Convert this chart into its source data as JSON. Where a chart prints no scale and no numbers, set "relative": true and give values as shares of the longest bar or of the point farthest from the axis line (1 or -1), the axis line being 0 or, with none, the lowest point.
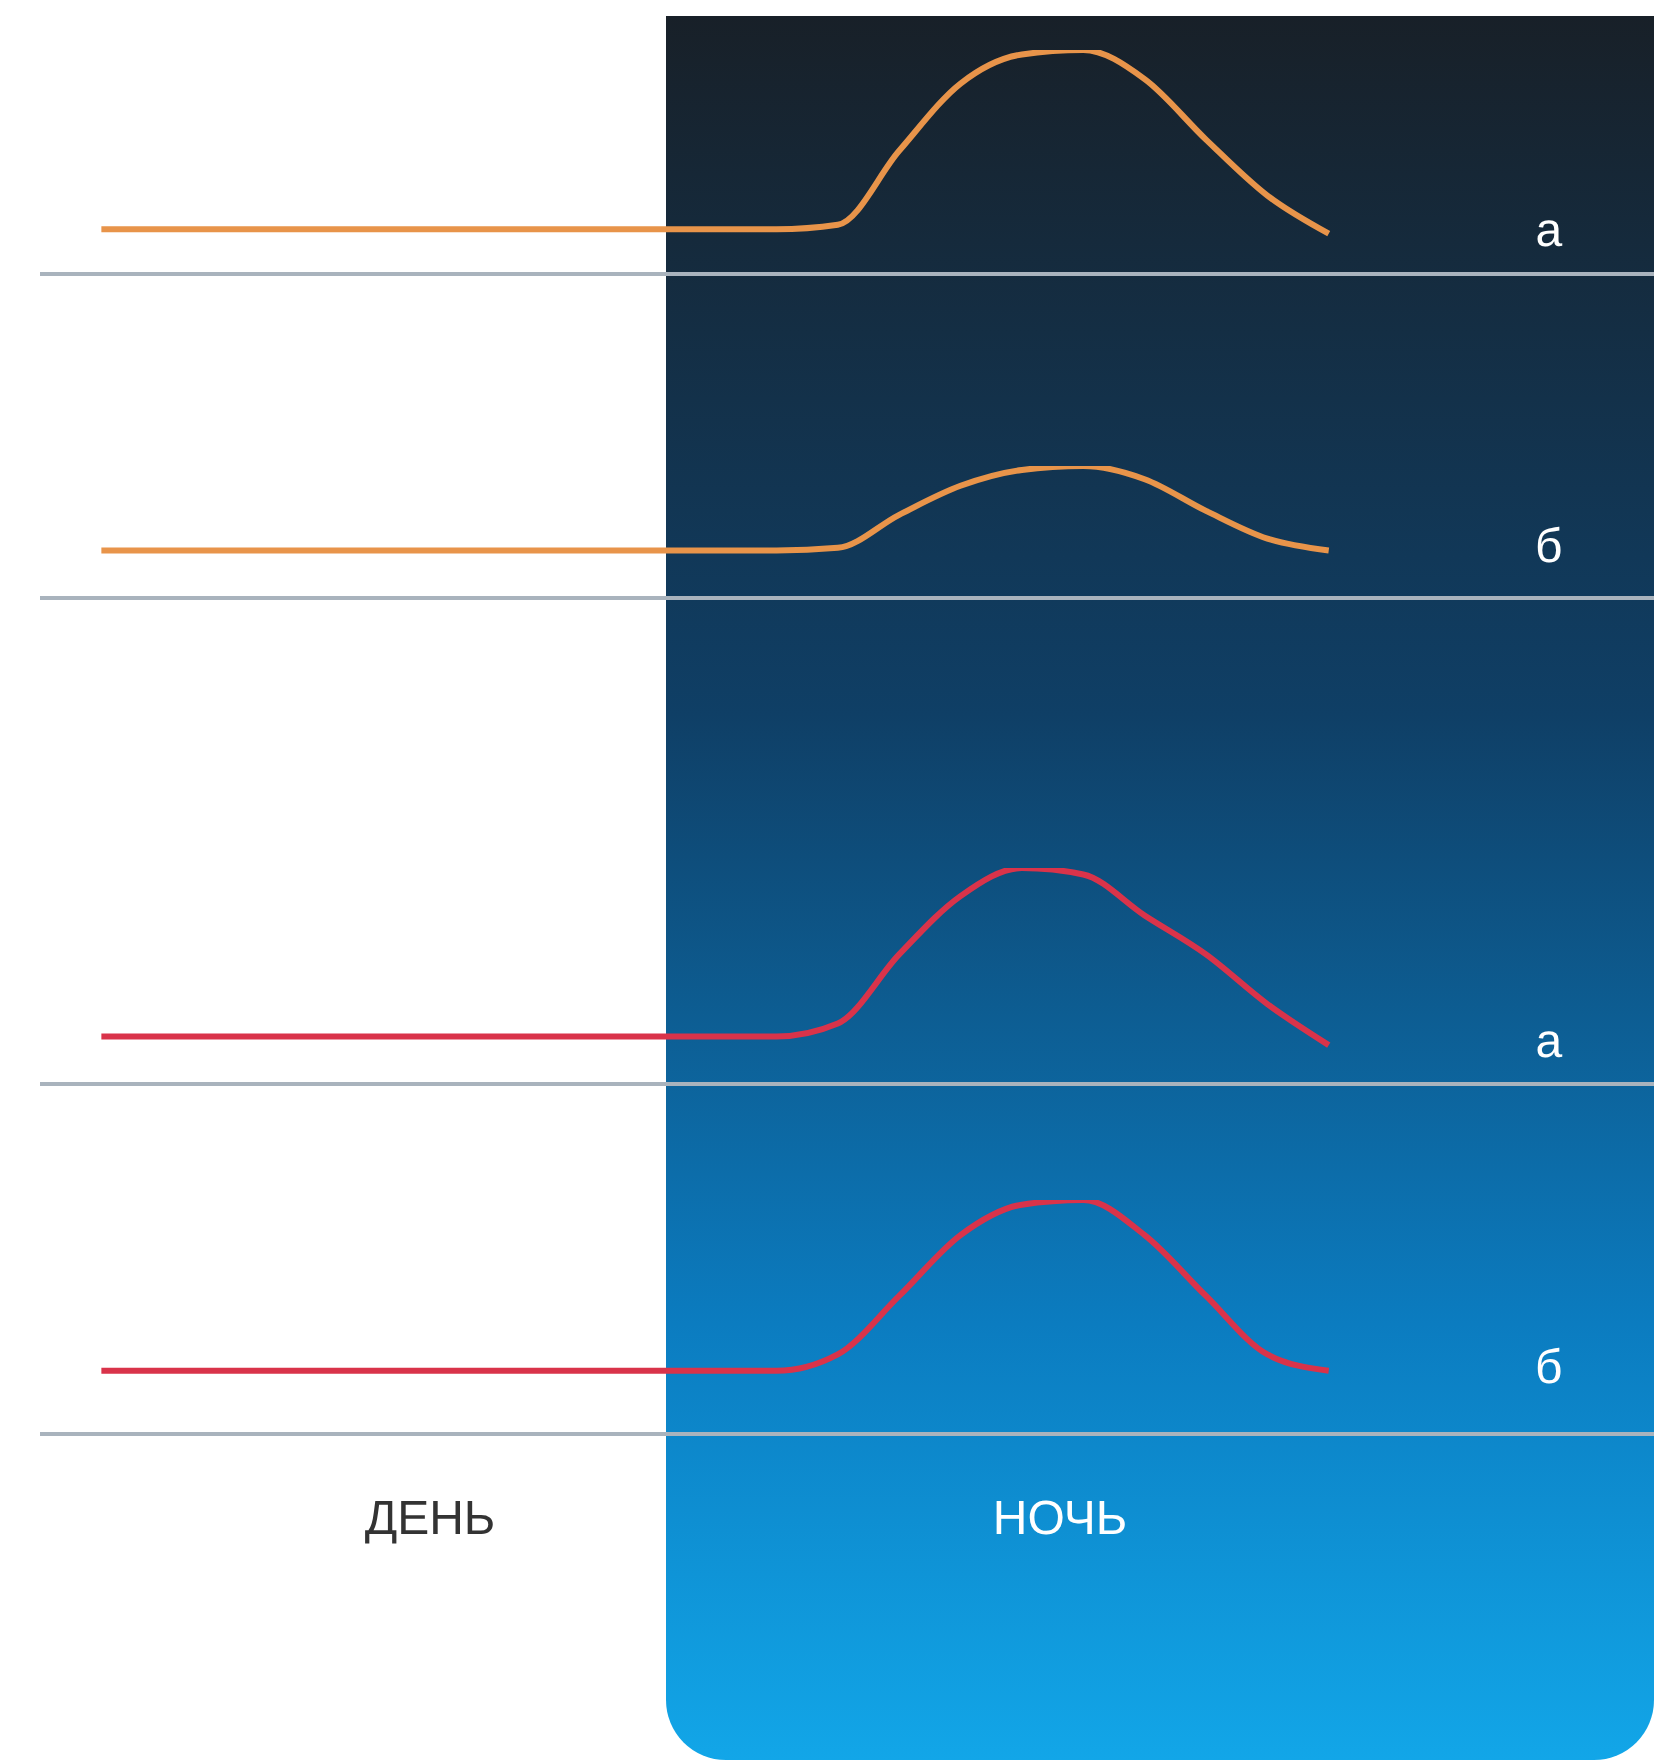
{
  "chart_data": [
    {
      "type": "line",
      "relative": true,
      "categories": [
        null,
        null,
        null,
        null,
        null,
        null,
        null,
        null,
        null,
        null,
        null,
        null,
        null,
        null,
        null,
        null,
        null,
        null,
        null,
        null,
        null
      ],
      "series": [
        {
          "name": "а",
          "color": "#e8944a",
          "values": [
            0.2,
            0.2,
            0.2,
            0.2,
            0.2,
            0.2,
            0.2,
            0.2,
            0.2,
            0.2,
            0.2,
            0.2,
            0.22,
            0.55,
            0.85,
            0.98,
            1,
            0.87,
            0.6,
            0.35,
            0.18
          ]
        }
      ]
    },
    {
      "type": "line",
      "relative": true,
      "categories": [
        null,
        null,
        null,
        null,
        null,
        null,
        null,
        null,
        null,
        null,
        null,
        null,
        null,
        null,
        null,
        null,
        null,
        null,
        null,
        null,
        null
      ],
      "series": [
        {
          "name": "б",
          "color": "#e8944a",
          "values": [
            0.36,
            0.36,
            0.36,
            0.36,
            0.36,
            0.36,
            0.36,
            0.36,
            0.36,
            0.36,
            0.36,
            0.36,
            0.38,
            0.63,
            0.85,
            0.97,
            1,
            0.9,
            0.66,
            0.45,
            0.36
          ]
        }
      ]
    },
    {
      "type": "line",
      "relative": true,
      "categories": [
        null,
        null,
        null,
        null,
        null,
        null,
        null,
        null,
        null,
        null,
        null,
        null,
        null,
        null,
        null,
        null,
        null,
        null,
        null,
        null,
        null
      ],
      "series": [
        {
          "name": "а",
          "color": "#d9334a",
          "values": [
            0.22,
            0.22,
            0.22,
            0.22,
            0.22,
            0.22,
            0.22,
            0.22,
            0.22,
            0.22,
            0.22,
            0.22,
            0.28,
            0.6,
            0.87,
            1,
            0.97,
            0.78,
            0.6,
            0.37,
            0.18
          ]
        }
      ]
    },
    {
      "type": "line",
      "relative": true,
      "categories": [
        null,
        null,
        null,
        null,
        null,
        null,
        null,
        null,
        null,
        null,
        null,
        null,
        null,
        null,
        null,
        null,
        null,
        null,
        null,
        null,
        null
      ],
      "series": [
        {
          "name": "б",
          "color": "#d9334a",
          "values": [
            0.27,
            0.27,
            0.27,
            0.27,
            0.27,
            0.27,
            0.27,
            0.27,
            0.27,
            0.27,
            0.27,
            0.27,
            0.34,
            0.59,
            0.85,
            0.98,
            1,
            0.85,
            0.59,
            0.34,
            0.27
          ]
        }
      ],
      "annotations": [
        "ДЕНЬ",
        "НОЧЬ"
      ]
    }
  ]
}
